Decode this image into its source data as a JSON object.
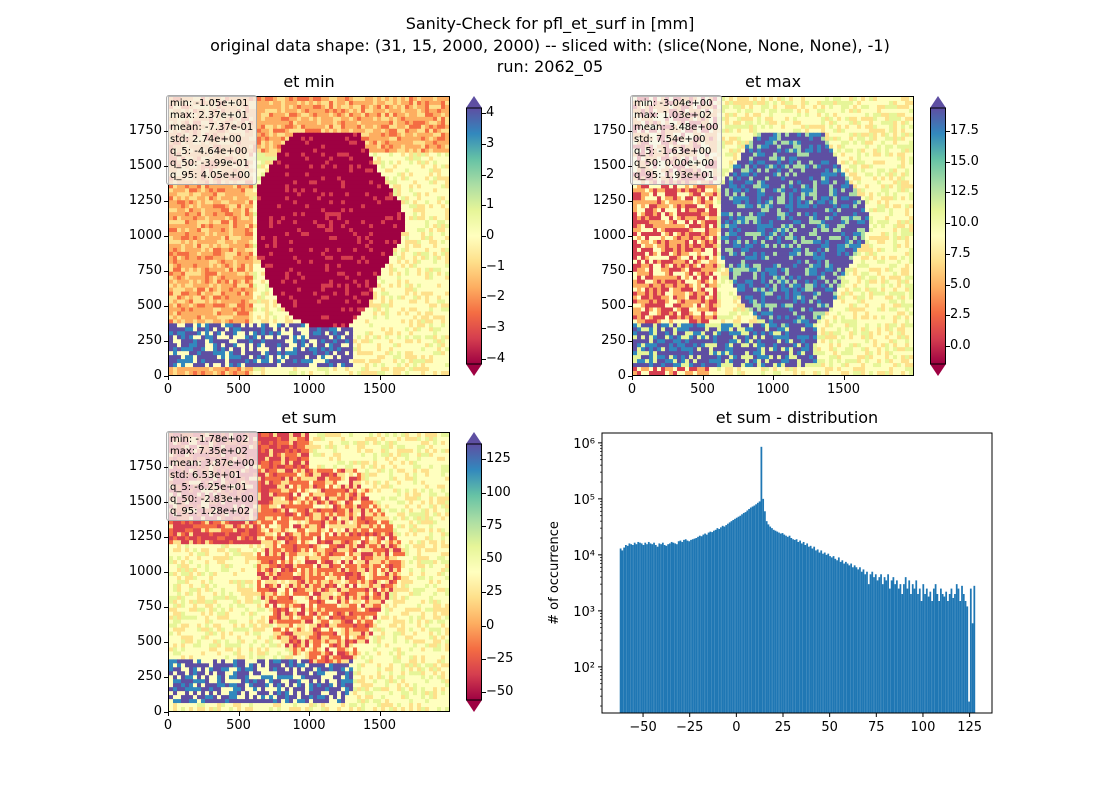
{
  "figure": {
    "title_line1": "Sanity-Check for pfl_et_surf in [mm]",
    "title_line2": "original data shape: (31, 15, 2000, 2000) -- sliced with: (slice(None, None, None), -1)",
    "title_line3": "run: 2062_05"
  },
  "panels": {
    "et_min": {
      "title": "et min",
      "stats": [
        "min: -1.05e+01",
        "max: 2.37e+01",
        "mean: -7.37e-01",
        "std: 2.74e+00",
        "q_5: -4.64e+00",
        "q_50: -3.99e-01",
        "q_95: 4.05e+00"
      ],
      "x_ticks": [
        "0",
        "500",
        "1000",
        "1500"
      ],
      "y_ticks": [
        "0",
        "250",
        "500",
        "750",
        "1000",
        "1250",
        "1500",
        "1750"
      ],
      "colorbar_ticks": [
        "4",
        "3",
        "2",
        "1",
        "0",
        "−1",
        "−2",
        "−3",
        "−4"
      ]
    },
    "et_max": {
      "title": "et max",
      "stats": [
        "min: -3.04e+00",
        "max: 1.03e+02",
        "mean: 3.48e+00",
        "std: 7.54e+00",
        "q_5: -1.63e+00",
        "q_50: 0.00e+00",
        "q_95: 1.93e+01"
      ],
      "x_ticks": [
        "0",
        "500",
        "1000",
        "1500"
      ],
      "y_ticks": [
        "0",
        "250",
        "500",
        "750",
        "1000",
        "1250",
        "1500",
        "1750"
      ],
      "colorbar_ticks": [
        "17.5",
        "15.0",
        "12.5",
        "10.0",
        "7.5",
        "5.0",
        "2.5",
        "0.0"
      ]
    },
    "et_sum": {
      "title": "et sum",
      "stats": [
        "min: -1.78e+02",
        "max: 7.35e+02",
        "mean: 3.87e+00",
        "std: 6.53e+01",
        "q_5: -6.25e+01",
        "q_50: -2.83e+00",
        "q_95: 1.28e+02"
      ],
      "x_ticks": [
        "0",
        "500",
        "1000",
        "1500"
      ],
      "y_ticks": [
        "0",
        "250",
        "500",
        "750",
        "1000",
        "1250",
        "1500",
        "1750"
      ],
      "colorbar_ticks": [
        "125",
        "100",
        "75",
        "50",
        "25",
        "0",
        "−25",
        "−50"
      ]
    },
    "dist": {
      "title": "et sum - distribution",
      "ylabel": "# of occurrence"
    }
  },
  "colors": {
    "bar": "#1f77b4",
    "spectral": [
      "#9e0142",
      "#d53e4f",
      "#f46d43",
      "#fdae61",
      "#fee08b",
      "#ffffbf",
      "#e6f598",
      "#abdda4",
      "#66c2a5",
      "#3288bd",
      "#5e4fa2"
    ]
  },
  "chart_data": [
    {
      "type": "heatmap",
      "title": "et min",
      "xlim": [
        0,
        2000
      ],
      "ylim": [
        0,
        2000
      ],
      "colorbar_range": [
        -4.64,
        4.05
      ],
      "colormap": "Spectral"
    },
    {
      "type": "heatmap",
      "title": "et max",
      "xlim": [
        0,
        2000
      ],
      "ylim": [
        0,
        2000
      ],
      "colorbar_range": [
        -1.63,
        19.3
      ],
      "colormap": "Spectral"
    },
    {
      "type": "heatmap",
      "title": "et sum",
      "xlim": [
        0,
        2000
      ],
      "ylim": [
        0,
        2000
      ],
      "colorbar_range": [
        -62.5,
        128
      ],
      "colormap": "Spectral"
    },
    {
      "type": "bar",
      "title": "et sum - distribution",
      "ylabel": "# of occurrence",
      "y_scale": "log",
      "xlim": [
        -72,
        137
      ],
      "ylim": [
        15,
        1500000
      ],
      "x_ticks": [
        -50,
        -25,
        0,
        25,
        50,
        75,
        100,
        125
      ],
      "x_tick_labels": [
        "−50",
        "−25",
        "0",
        "25",
        "50",
        "75",
        "100",
        "125"
      ],
      "y_ticks": [
        100,
        1000,
        10000,
        100000,
        1000000
      ],
      "y_tick_labels": [
        "10²",
        "10³",
        "10⁴",
        "10⁵",
        "10⁶"
      ],
      "bin_range": [
        -62.5,
        128
      ],
      "values": [
        13000,
        12000,
        13500,
        15000,
        14500,
        16000,
        15500,
        15000,
        16500,
        15500,
        17000,
        16500,
        16000,
        15000,
        16500,
        15500,
        17000,
        16000,
        15500,
        16500,
        15000,
        14000,
        16000,
        15500,
        16500,
        15000,
        14500,
        15500,
        16000,
        17000,
        16500,
        16000,
        15500,
        17500,
        18000,
        17000,
        18500,
        19000,
        18000,
        17500,
        18500,
        19000,
        19500,
        20000,
        21000,
        22000,
        21500,
        23000,
        24000,
        23000,
        25000,
        26000,
        25500,
        27000,
        28000,
        30000,
        29000,
        31000,
        33000,
        32000,
        34000,
        36000,
        38000,
        40000,
        42000,
        44000,
        46000,
        48000,
        50000,
        53000,
        56000,
        58000,
        62000,
        66000,
        70000,
        73000,
        76000,
        80000,
        85000,
        90000,
        850000,
        100000,
        60000,
        40000,
        35000,
        32000,
        30000,
        28000,
        27000,
        26000,
        25000,
        24000,
        24500,
        23000,
        22000,
        21000,
        22000,
        20000,
        19000,
        18500,
        19000,
        17000,
        18000,
        16000,
        17000,
        15000,
        16000,
        14000,
        14500,
        13000,
        14000,
        12000,
        12500,
        11000,
        12000,
        10500,
        11000,
        10000,
        10500,
        9500,
        9000,
        9500,
        8500,
        8000,
        9000,
        7500,
        8000,
        7000,
        7500,
        7000,
        6500,
        7000,
        6000,
        6500,
        6000,
        5500,
        6000,
        5000,
        5500,
        4500,
        5000,
        3000,
        4500,
        5000,
        4000,
        4500,
        3500,
        4000,
        4500,
        3000,
        4000,
        3500,
        4500,
        2500,
        3500,
        4000,
        3000,
        3500,
        2500,
        3000,
        2000,
        3000,
        4000,
        2500,
        3500,
        2000,
        3000,
        2500,
        3500,
        2000,
        2500,
        1500,
        3000,
        2000,
        2500,
        1800,
        2200,
        1500,
        2500,
        3000,
        2000,
        1500,
        2500,
        2000,
        1800,
        2200,
        1500,
        2000,
        2500,
        1700,
        2000,
        3000,
        2500,
        1500,
        2800,
        2000,
        1500,
        1200,
        24,
        2500,
        600,
        2800
      ]
    }
  ]
}
